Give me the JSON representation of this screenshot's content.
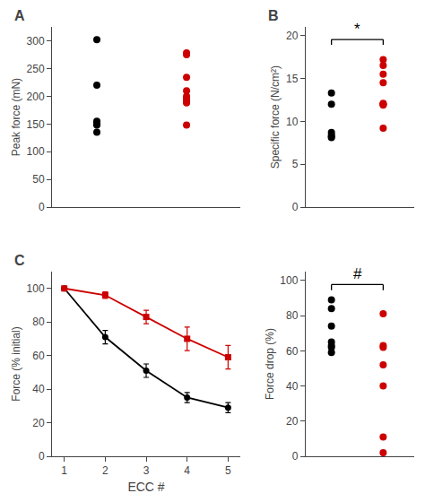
{
  "chart_data": [
    {
      "type": "scatter",
      "title": "A",
      "ylabel": "Peak force (mN)",
      "marker": "circle",
      "series": [
        {
          "color": "#000000",
          "x": [
            1,
            1,
            1,
            1,
            1,
            1,
            1
          ],
          "values": [
            302,
            220,
            155,
            152,
            150,
            148,
            135
          ]
        },
        {
          "color": "#cc0000",
          "x": [
            2,
            2,
            2,
            2,
            2,
            2,
            2,
            2,
            2,
            2
          ],
          "values": [
            278,
            275,
            234,
            210,
            200,
            196,
            193,
            190,
            188,
            148
          ]
        }
      ],
      "xlim": [
        0.5,
        2.6
      ],
      "xticks": [],
      "ylim": [
        0,
        325
      ],
      "yticks": [
        0,
        50,
        100,
        150,
        200,
        250,
        300
      ],
      "tick_labels": "y",
      "grid": false
    },
    {
      "type": "scatter",
      "title": "B",
      "ylabel": "Specific force (N/cm²)",
      "marker": "circle",
      "series": [
        {
          "color": "#000000",
          "x": [
            1,
            1,
            1,
            1,
            1,
            1
          ],
          "values": [
            13.3,
            12.0,
            8.7,
            8.4,
            8.2,
            8.1
          ]
        },
        {
          "color": "#cc0000",
          "x": [
            2,
            2,
            2,
            2,
            2,
            2,
            2,
            2,
            2
          ],
          "values": [
            17.2,
            16.5,
            15.5,
            14.5,
            12.1,
            12.0,
            12.0,
            11.9,
            9.2
          ]
        }
      ],
      "annotations": [
        {
          "text": "*"
        }
      ],
      "xlim": [
        0.5,
        2.6
      ],
      "xticks": [],
      "ylim": [
        0,
        21
      ],
      "yticks": [
        0,
        5,
        10,
        15,
        20
      ],
      "tick_labels": "y",
      "grid": false
    },
    {
      "type": "line",
      "title": "C",
      "ylabel": "Force (% initial)",
      "xlabel": "ECC #",
      "x": [
        1,
        2,
        3,
        4,
        5
      ],
      "series": [
        {
          "color": "#000000",
          "marker": "circle",
          "values": [
            100,
            71,
            51,
            35,
            29
          ],
          "errors": [
            0,
            4,
            4,
            3,
            3
          ]
        },
        {
          "color": "#cc0000",
          "marker": "square",
          "values": [
            100,
            96,
            83,
            70,
            59
          ],
          "errors": [
            0,
            2,
            4,
            7,
            7
          ]
        }
      ],
      "xlim": [
        0.7,
        5.3
      ],
      "xticks": [
        1,
        2,
        3,
        4,
        5
      ],
      "ylim": [
        0,
        110
      ],
      "yticks": [
        0,
        20,
        40,
        60,
        80,
        100
      ],
      "grid": false
    },
    {
      "type": "scatter",
      "ylabel": "Force drop (%)",
      "marker": "circle",
      "series": [
        {
          "color": "#000000",
          "x": [
            1,
            1,
            1,
            1,
            1,
            1,
            1
          ],
          "values": [
            89,
            84,
            74,
            65,
            63,
            62,
            59
          ]
        },
        {
          "color": "#cc0000",
          "x": [
            2,
            2,
            2,
            2,
            2,
            2,
            2
          ],
          "values": [
            81,
            63,
            62,
            52,
            40,
            11,
            2
          ]
        }
      ],
      "annotations": [
        {
          "text": "#"
        }
      ],
      "xlim": [
        0.5,
        2.6
      ],
      "xticks": [],
      "ylim": [
        0,
        105
      ],
      "yticks": [
        0,
        20,
        40,
        60,
        80,
        100
      ],
      "tick_labels": "y",
      "grid": false
    }
  ]
}
